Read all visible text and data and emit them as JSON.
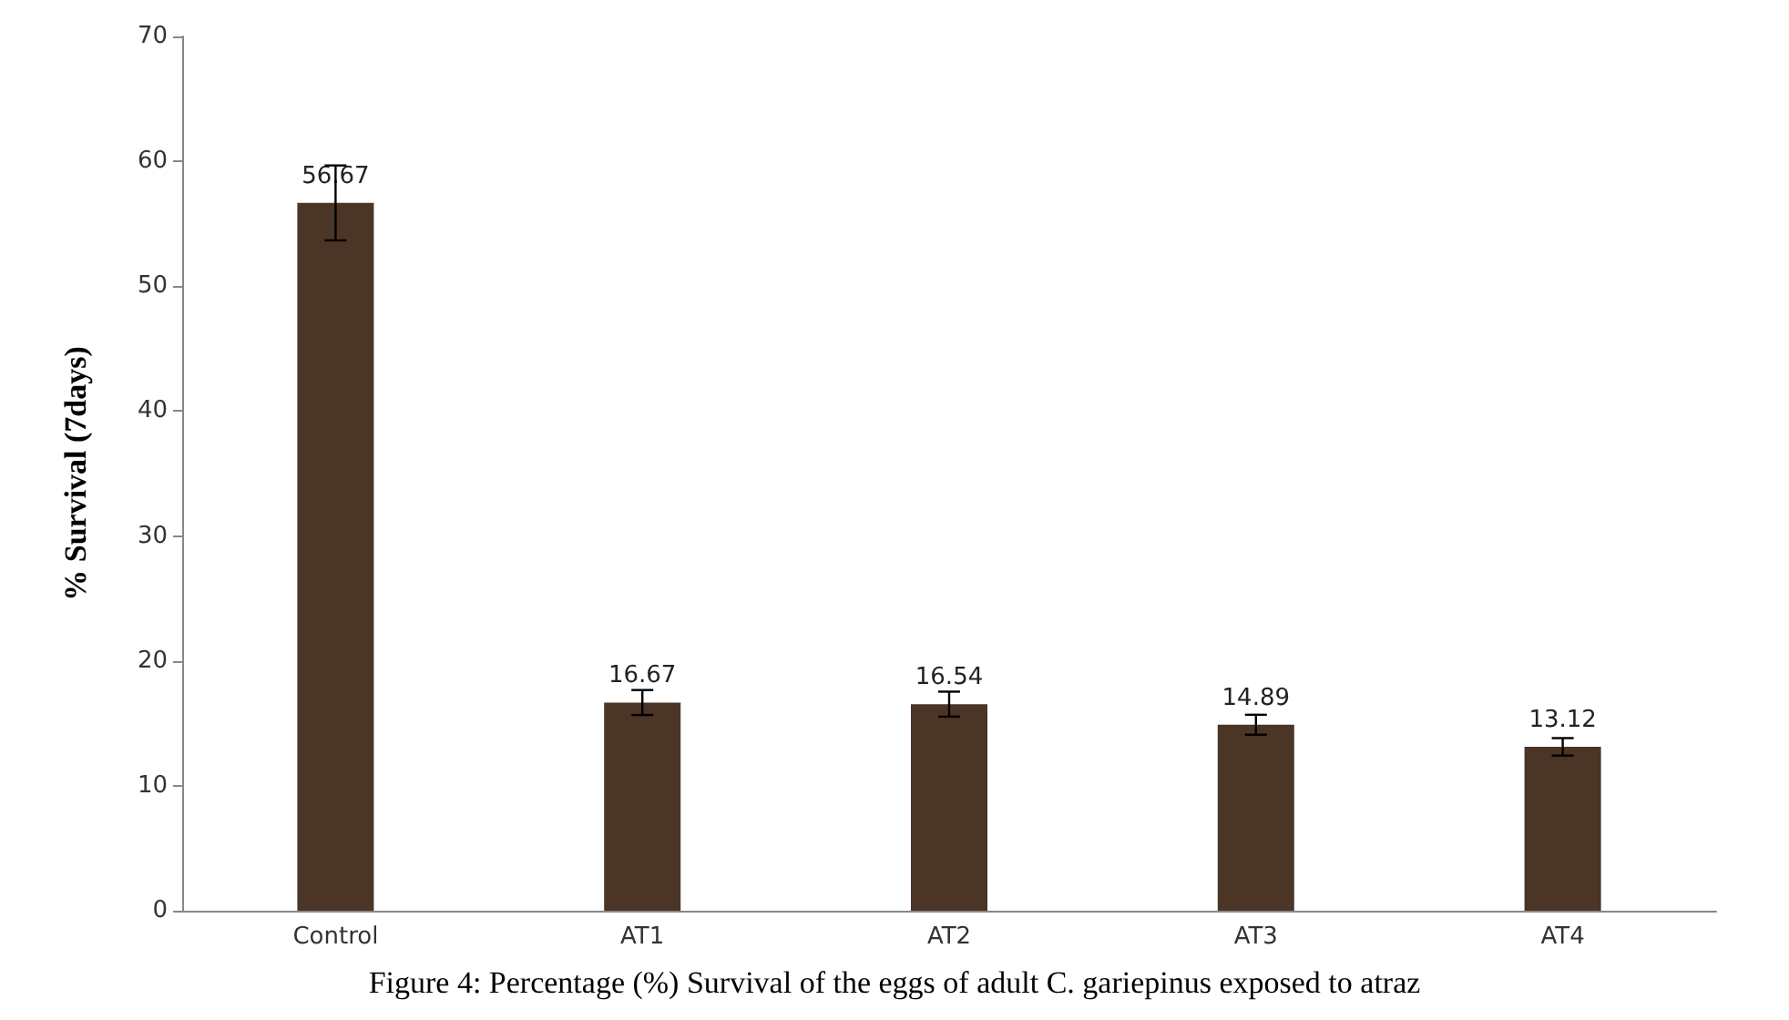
{
  "chart_data": {
    "type": "bar",
    "categories": [
      "Control",
      "AT1",
      "AT2",
      "AT3",
      "AT4"
    ],
    "values": [
      56.67,
      16.67,
      16.54,
      14.89,
      13.12
    ],
    "errors": [
      3,
      1,
      1,
      0.8,
      0.7
    ],
    "color": "#4a3526",
    "ylabel": "% Survival (7days)",
    "ylim": [
      0,
      70
    ],
    "yticks": [
      0,
      10,
      20,
      30,
      40,
      50,
      60,
      70
    ],
    "data_labels": true,
    "grid": false,
    "annotations": [
      "Figure 4: Percentage (%) Survival of the eggs of adult C. gariepinus exposed to atraz"
    ]
  }
}
